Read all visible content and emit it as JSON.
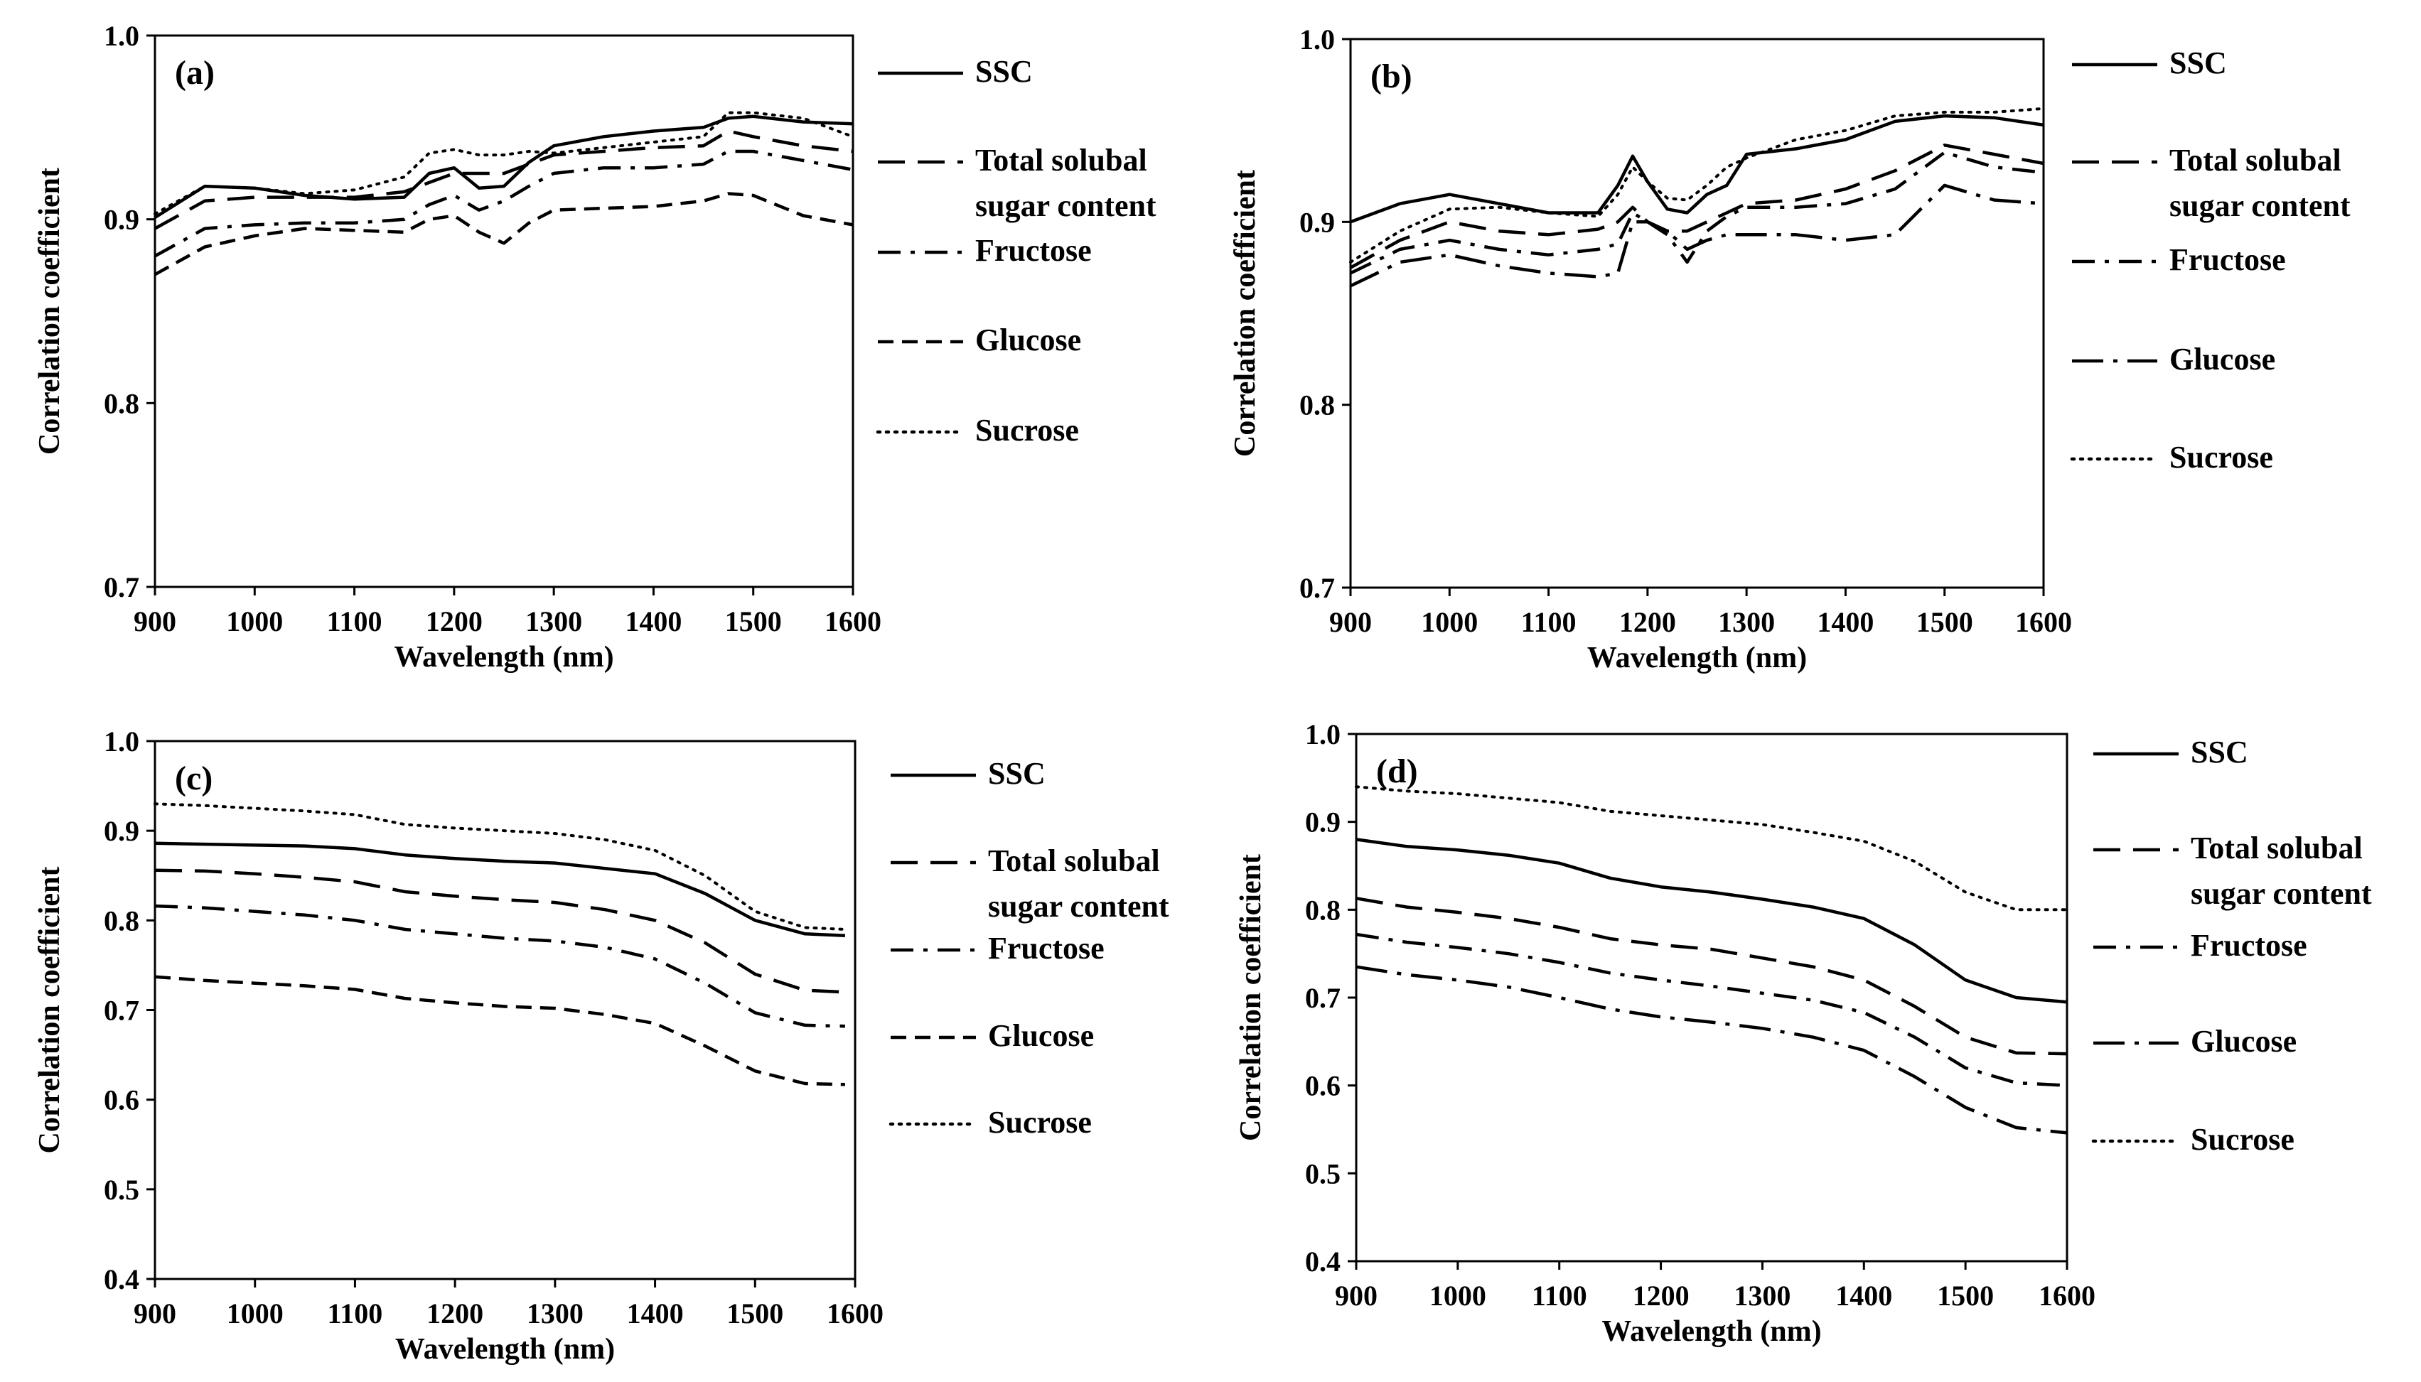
{
  "styles": {
    "SSC": "solid",
    "Total solubal sugar content": "dash",
    "Fructose": "dashdot",
    "Glucose": "shortdash",
    "Sucrose": "dotted"
  },
  "chart_data": [
    {
      "panel": "(a)",
      "type": "line",
      "xlabel": "Wavelength (nm)",
      "ylabel": "Correlation coefficient",
      "xlim": [
        900,
        1600
      ],
      "ylim": [
        0.7,
        1.0
      ],
      "xticks": [
        "900",
        "1000",
        "1100",
        "1200",
        "1300",
        "1400",
        "1500",
        "1600"
      ],
      "yticks": [
        "0.7",
        "0.8",
        "0.9",
        "1.0"
      ],
      "x": [
        900,
        950,
        1000,
        1050,
        1100,
        1150,
        1175,
        1200,
        1225,
        1250,
        1275,
        1300,
        1350,
        1400,
        1450,
        1475,
        1500,
        1550,
        1600
      ],
      "series": [
        {
          "name": "SSC",
          "legend_lines": [
            "SSC"
          ],
          "style": "solid",
          "values": [
            0.901,
            0.918,
            0.917,
            0.913,
            0.911,
            0.912,
            0.925,
            0.928,
            0.917,
            0.918,
            0.931,
            0.94,
            0.945,
            0.948,
            0.95,
            0.955,
            0.956,
            0.953,
            0.952
          ]
        },
        {
          "name": "Total solubal sugar content",
          "legend_lines": [
            "Total solubal",
            "sugar content"
          ],
          "style": "dash",
          "values": [
            0.895,
            0.91,
            0.912,
            0.912,
            0.912,
            0.915,
            0.92,
            0.925,
            0.925,
            0.925,
            0.93,
            0.935,
            0.937,
            0.939,
            0.94,
            0.948,
            0.945,
            0.94,
            0.937
          ]
        },
        {
          "name": "Fructose",
          "legend_lines": [
            "Fructose"
          ],
          "style": "dashdot",
          "values": [
            0.88,
            0.895,
            0.897,
            0.898,
            0.898,
            0.9,
            0.908,
            0.913,
            0.905,
            0.91,
            0.918,
            0.925,
            0.928,
            0.928,
            0.93,
            0.937,
            0.937,
            0.932,
            0.927
          ]
        },
        {
          "name": "Glucose",
          "legend_lines": [
            "Glucose"
          ],
          "style": "shortdash",
          "values": [
            0.87,
            0.885,
            0.891,
            0.895,
            0.894,
            0.893,
            0.9,
            0.902,
            0.893,
            0.887,
            0.898,
            0.905,
            0.906,
            0.907,
            0.91,
            0.914,
            0.913,
            0.902,
            0.897
          ]
        },
        {
          "name": "Sucrose",
          "legend_lines": [
            "Sucrose"
          ],
          "style": "dotted",
          "values": [
            0.903,
            0.918,
            0.917,
            0.914,
            0.916,
            0.923,
            0.936,
            0.938,
            0.935,
            0.935,
            0.937,
            0.936,
            0.939,
            0.942,
            0.945,
            0.958,
            0.958,
            0.955,
            0.945
          ]
        }
      ]
    },
    {
      "panel": "(b)",
      "type": "line",
      "xlabel": "Wavelength (nm)",
      "ylabel": "Correlation coefficient",
      "xlim": [
        900,
        1600
      ],
      "ylim": [
        0.7,
        1.0
      ],
      "xticks": [
        "900",
        "1000",
        "1100",
        "1200",
        "1300",
        "1400",
        "1500",
        "1600"
      ],
      "yticks": [
        "0.7",
        "0.8",
        "0.9",
        "1.0"
      ],
      "x": [
        900,
        950,
        1000,
        1050,
        1100,
        1150,
        1170,
        1185,
        1200,
        1220,
        1240,
        1260,
        1280,
        1300,
        1350,
        1400,
        1450,
        1500,
        1550,
        1600
      ],
      "series": [
        {
          "name": "SSC",
          "legend_lines": [
            "SSC"
          ],
          "style": "solid",
          "values": [
            0.9,
            0.91,
            0.915,
            0.91,
            0.905,
            0.905,
            0.92,
            0.936,
            0.922,
            0.907,
            0.905,
            0.915,
            0.92,
            0.937,
            0.94,
            0.945,
            0.955,
            0.958,
            0.957,
            0.953
          ]
        },
        {
          "name": "Total solubal sugar content",
          "legend_lines": [
            "Total solubal",
            "sugar content"
          ],
          "style": "dash",
          "values": [
            0.875,
            0.89,
            0.9,
            0.895,
            0.893,
            0.896,
            0.9,
            0.908,
            0.9,
            0.895,
            0.895,
            0.9,
            0.905,
            0.91,
            0.912,
            0.918,
            0.928,
            0.942,
            0.937,
            0.932
          ]
        },
        {
          "name": "Fructose",
          "legend_lines": [
            "Fructose"
          ],
          "style": "dashdot",
          "values": [
            0.872,
            0.885,
            0.89,
            0.885,
            0.882,
            0.885,
            0.888,
            0.905,
            0.9,
            0.893,
            0.878,
            0.895,
            0.903,
            0.908,
            0.908,
            0.91,
            0.918,
            0.938,
            0.93,
            0.927
          ]
        },
        {
          "name": "Glucose",
          "legend_lines": [
            "Glucose"
          ],
          "style": "longdashdot",
          "values": [
            0.865,
            0.878,
            0.882,
            0.876,
            0.872,
            0.87,
            0.872,
            0.9,
            0.9,
            0.895,
            0.885,
            0.89,
            0.893,
            0.893,
            0.893,
            0.89,
            0.893,
            0.92,
            0.912,
            0.91
          ]
        },
        {
          "name": "Sucrose",
          "legend_lines": [
            "Sucrose"
          ],
          "style": "dotted",
          "values": [
            0.878,
            0.895,
            0.907,
            0.908,
            0.905,
            0.903,
            0.915,
            0.93,
            0.922,
            0.913,
            0.912,
            0.92,
            0.93,
            0.935,
            0.945,
            0.95,
            0.958,
            0.96,
            0.96,
            0.962
          ]
        }
      ]
    },
    {
      "panel": "(c)",
      "type": "line",
      "xlabel": "Wavelength (nm)",
      "ylabel": "Correlation coefficient",
      "xlim": [
        900,
        1600
      ],
      "ylim": [
        0.4,
        1.0
      ],
      "xticks": [
        "900",
        "1000",
        "1100",
        "1200",
        "1300",
        "1400",
        "1500",
        "1600"
      ],
      "yticks": [
        "0.4",
        "0.5",
        "0.6",
        "0.7",
        "0.8",
        "0.9",
        "1.0"
      ],
      "x": [
        900,
        950,
        1000,
        1050,
        1100,
        1150,
        1200,
        1250,
        1300,
        1350,
        1400,
        1450,
        1500,
        1550,
        1590
      ],
      "series": [
        {
          "name": "SSC",
          "legend_lines": [
            "SSC"
          ],
          "style": "solid",
          "values": [
            0.886,
            0.885,
            0.884,
            0.883,
            0.88,
            0.873,
            0.869,
            0.866,
            0.864,
            0.858,
            0.852,
            0.83,
            0.8,
            0.785,
            0.783
          ]
        },
        {
          "name": "Total solubal sugar content",
          "legend_lines": [
            "Total solubal",
            "sugar content"
          ],
          "style": "dash",
          "values": [
            0.856,
            0.855,
            0.852,
            0.848,
            0.843,
            0.832,
            0.827,
            0.823,
            0.82,
            0.812,
            0.8,
            0.775,
            0.74,
            0.722,
            0.72
          ]
        },
        {
          "name": "Fructose",
          "legend_lines": [
            "Fructose"
          ],
          "style": "dashdot",
          "values": [
            0.816,
            0.814,
            0.81,
            0.806,
            0.8,
            0.79,
            0.785,
            0.78,
            0.777,
            0.77,
            0.757,
            0.73,
            0.697,
            0.683,
            0.682
          ]
        },
        {
          "name": "Glucose",
          "legend_lines": [
            "Glucose"
          ],
          "style": "shortdash",
          "values": [
            0.737,
            0.733,
            0.73,
            0.727,
            0.723,
            0.713,
            0.708,
            0.704,
            0.702,
            0.695,
            0.685,
            0.66,
            0.632,
            0.618,
            0.617
          ]
        },
        {
          "name": "Sucrose",
          "legend_lines": [
            "Sucrose"
          ],
          "style": "dotted",
          "values": [
            0.93,
            0.928,
            0.925,
            0.922,
            0.918,
            0.907,
            0.903,
            0.9,
            0.897,
            0.89,
            0.878,
            0.85,
            0.81,
            0.792,
            0.79
          ]
        }
      ]
    },
    {
      "panel": "(d)",
      "type": "line",
      "xlabel": "Wavelength (nm)",
      "ylabel": "Correlation coefficient",
      "xlim": [
        900,
        1600
      ],
      "ylim": [
        0.4,
        1.0
      ],
      "xticks": [
        "900",
        "1000",
        "1100",
        "1200",
        "1300",
        "1400",
        "1500",
        "1600"
      ],
      "yticks": [
        "0.4",
        "0.5",
        "0.6",
        "0.7",
        "0.8",
        "0.9",
        "1.0"
      ],
      "x": [
        900,
        950,
        1000,
        1050,
        1100,
        1150,
        1200,
        1250,
        1300,
        1350,
        1400,
        1450,
        1500,
        1550,
        1600
      ],
      "series": [
        {
          "name": "SSC",
          "legend_lines": [
            "SSC"
          ],
          "style": "solid",
          "values": [
            0.88,
            0.872,
            0.868,
            0.862,
            0.853,
            0.836,
            0.826,
            0.82,
            0.812,
            0.803,
            0.79,
            0.76,
            0.72,
            0.7,
            0.695
          ]
        },
        {
          "name": "Total solubal sugar content",
          "legend_lines": [
            "Total solubal",
            "sugar content"
          ],
          "style": "dash",
          "values": [
            0.813,
            0.803,
            0.797,
            0.79,
            0.78,
            0.767,
            0.76,
            0.755,
            0.745,
            0.735,
            0.72,
            0.69,
            0.655,
            0.637,
            0.636
          ]
        },
        {
          "name": "Fructose",
          "legend_lines": [
            "Fructose"
          ],
          "style": "dashdot",
          "values": [
            0.772,
            0.763,
            0.757,
            0.75,
            0.74,
            0.728,
            0.72,
            0.713,
            0.705,
            0.697,
            0.683,
            0.655,
            0.62,
            0.603,
            0.6
          ]
        },
        {
          "name": "Glucose",
          "legend_lines": [
            "Glucose"
          ],
          "style": "longdashdot",
          "values": [
            0.735,
            0.726,
            0.72,
            0.712,
            0.7,
            0.687,
            0.678,
            0.672,
            0.665,
            0.655,
            0.64,
            0.61,
            0.575,
            0.552,
            0.546
          ]
        },
        {
          "name": "Sucrose",
          "legend_lines": [
            "Sucrose"
          ],
          "style": "dotted",
          "values": [
            0.94,
            0.935,
            0.932,
            0.927,
            0.922,
            0.912,
            0.907,
            0.902,
            0.897,
            0.888,
            0.878,
            0.855,
            0.82,
            0.8,
            0.8
          ]
        }
      ]
    }
  ]
}
